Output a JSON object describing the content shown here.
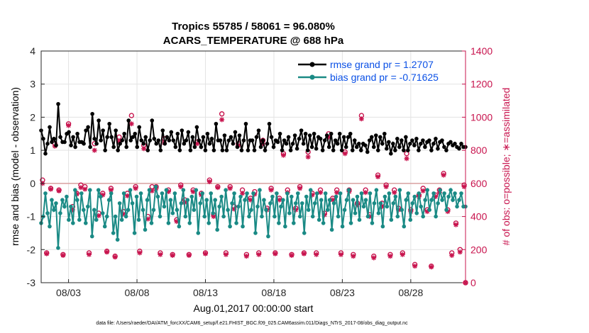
{
  "chart_data": {
    "type": "line",
    "title": "Tropics 55785 / 58061 = 96.080%",
    "subtitle": "ACARS_TEMPERATURE @ 688 hPa",
    "xlabel": "Aug.01,2017 00:00:00 start",
    "ylabel": "rmse and bias (model - observation)",
    "y2label": "# of obs: o=possible; ∗=assimilated",
    "footnote": "data file: /Users/raeder/DAI/ATM_forcXX/CAM6_setup/f.e21.FHIST_BGC.f09_025.CAM6assim.011/Diags_NTrS_2017-08/obs_diag_output.nc",
    "xlim": [
      1.0,
      32.0
    ],
    "ylim": [
      -3,
      4
    ],
    "y2lim": [
      0,
      1400
    ],
    "x_ticks": [
      3,
      8,
      13,
      18,
      23,
      28
    ],
    "x_tick_labels": [
      "08/03",
      "08/08",
      "08/13",
      "08/18",
      "08/23",
      "08/28"
    ],
    "y_ticks": [
      -3,
      -2,
      -1,
      0,
      1,
      2,
      3,
      4
    ],
    "y2_ticks": [
      0,
      200,
      400,
      600,
      800,
      1000,
      1200,
      1400
    ],
    "legend_position": "top-right",
    "series": [
      {
        "name": "rmse grand pr = 1.2707",
        "color": "#000000",
        "axis": "left",
        "values": [
          1.6,
          1.35,
          0.9,
          1.2,
          1.7,
          1.25,
          1.35,
          1.15,
          2.4,
          1.4,
          1.25,
          1.25,
          1.5,
          1.55,
          1.15,
          1.4,
          1.1,
          1.5,
          1.25,
          1.25,
          1.2,
          1.6,
          1.7,
          1.1,
          2.1,
          1.35,
          1.2,
          1.9,
          1.3,
          1.6,
          1.0,
          1.4,
          1.8,
          1.4,
          1.1,
          1.6,
          1.0,
          1.2,
          1.3,
          1.5,
          1.1,
          1.9,
          1.3,
          1.4,
          1.5,
          1.1,
          1.7,
          1.3,
          1.2,
          1.4,
          1.0,
          1.3,
          1.9,
          1.35,
          1.2,
          1.3,
          1.0,
          1.6,
          1.2,
          1.4,
          1.3,
          1.55,
          1.3,
          1.1,
          1.5,
          1.0,
          1.6,
          1.2,
          1.3,
          1.55,
          1.0,
          1.4,
          1.1,
          1.7,
          1.3,
          1.1,
          1.4,
          1.0,
          1.5,
          1.2,
          1.35,
          1.0,
          1.8,
          1.3,
          1.3,
          1.0,
          1.45,
          1.0,
          1.3,
          1.4,
          1.2,
          1.55,
          1.1,
          1.45,
          1.0,
          1.3,
          1.8,
          1.0,
          1.3,
          1.3,
          1.0,
          1.4,
          1.6,
          1.1,
          1.3,
          1.0,
          1.2,
          1.8,
          1.4,
          1.1,
          1.3,
          1.25,
          1.5,
          1.0,
          1.3,
          1.2,
          1.4,
          1.0,
          1.2,
          1.45,
          1.05,
          1.35,
          1.6,
          1.2,
          1.5,
          1.0,
          1.45,
          1.1,
          1.5,
          1.05,
          1.4,
          1.35,
          1.0,
          1.3,
          1.45,
          1.1,
          1.5,
          1.0,
          1.3,
          1.2,
          1.5,
          1.0,
          1.4,
          1.1,
          1.4,
          1.5,
          1.0,
          1.3,
          1.1,
          1.2,
          1.0,
          1.2,
          1.15,
          0.95,
          1.3,
          1.4,
          1.1,
          1.45,
          1.0,
          1.4,
          1.2,
          1.5,
          1.05,
          1.25,
          0.9,
          1.2,
          1.0,
          1.35,
          1.1,
          1.3,
          1.0,
          1.4,
          1.0,
          1.2,
          1.3,
          1.15,
          1.35,
          1.0,
          1.2,
          1.3,
          1.1,
          1.25,
          1.3,
          1.0,
          1.2,
          1.35,
          1.05,
          1.25,
          1.3,
          1.1,
          1.0,
          1.2,
          1.25,
          1.15,
          1.2,
          1.1,
          1.05,
          1.2,
          1.1,
          1.1
        ]
      },
      {
        "name": "bias grand pr = -0.71625",
        "color": "#1a8a85",
        "axis": "left",
        "values": [
          -1.2,
          -1.0,
          -0.3,
          -0.9,
          -1.3,
          -0.5,
          -0.8,
          -0.6,
          -1.95,
          -0.9,
          -0.5,
          -0.7,
          -0.4,
          -1.1,
          -0.7,
          -1.2,
          -0.2,
          -0.5,
          -1.1,
          -0.3,
          -0.8,
          -1.2,
          -0.7,
          -0.2,
          -1.6,
          -0.8,
          -1.1,
          -0.2,
          -0.4,
          -0.9,
          -1.3,
          -1.0,
          -0.5,
          -0.3,
          -1.5,
          -1.0,
          -1.7,
          -0.6,
          -1.1,
          -0.3,
          -1.0,
          -0.8,
          -0.2,
          -0.6,
          -1.5,
          -0.4,
          -1.1,
          -0.3,
          -0.8,
          -1.4,
          -0.5,
          -0.2,
          -1.2,
          -0.8,
          -0.1,
          -0.4,
          -1.0,
          -0.3,
          -0.7,
          -0.2,
          -1.2,
          -0.5,
          -0.9,
          -0.3,
          -0.8,
          -1.3,
          -0.6,
          -0.2,
          -1.0,
          -0.5,
          -1.2,
          -0.4,
          -0.8,
          -0.2,
          -1.5,
          -0.6,
          -0.3,
          -1.0,
          -0.5,
          -1.2,
          -0.3,
          -0.9,
          -0.5,
          -1.4,
          -0.7,
          -0.4,
          -1.0,
          -0.2,
          -0.8,
          -1.3,
          -0.6,
          -0.3,
          -1.2,
          -0.7,
          -0.4,
          -1.3,
          -0.5,
          -0.3,
          -1.0,
          -0.8,
          -0.3,
          -1.5,
          -0.7,
          -0.2,
          -1.0,
          -0.5,
          -0.8,
          -1.6,
          -0.6,
          -0.4,
          -1.0,
          -0.3,
          -1.2,
          -0.7,
          -0.5,
          -1.3,
          -0.3,
          -0.9,
          -0.4,
          -1.2,
          -0.6,
          -0.3,
          -1.0,
          -0.6,
          -1.5,
          -0.4,
          -0.8,
          -0.2,
          -1.0,
          -0.6,
          -0.3,
          -1.1,
          -0.5,
          -1.2,
          -0.3,
          -0.8,
          -0.5,
          -1.4,
          -0.6,
          -0.4,
          -1.0,
          -0.3,
          -1.3,
          -0.8,
          -0.5,
          -0.2,
          -1.2,
          -0.5,
          -0.9,
          -0.4,
          -1.1,
          -0.3,
          -0.7,
          -0.5,
          -1.0,
          -0.3,
          -1.2,
          -0.6,
          -0.2,
          -0.9,
          -0.6,
          -1.3,
          -0.4,
          -0.7,
          -0.3,
          -1.1,
          -0.6,
          -0.4,
          -1.0,
          -0.2,
          -0.8,
          -1.3,
          -0.5,
          -0.3,
          -1.1,
          -0.6,
          -0.4,
          -0.9,
          -0.3,
          -0.7,
          -1.0,
          -0.5,
          -0.2,
          -0.8,
          -0.5,
          -0.3,
          -1.0,
          -0.6,
          -0.2,
          -0.5,
          -0.3,
          -0.8,
          -0.4,
          -0.2,
          -0.5,
          -0.3,
          -0.7,
          -0.5,
          -0.3,
          -0.7,
          -0.7
        ]
      }
    ],
    "obs_counts": {
      "color": "#c8144e",
      "axis": "right",
      "possible_marker": "o",
      "assimilated_marker": "*",
      "points": [
        [
          1.1,
          620,
          600
        ],
        [
          1.4,
          180,
          175
        ],
        [
          1.7,
          570,
          565
        ],
        [
          2.0,
          840,
          825
        ],
        [
          2.3,
          560,
          555
        ],
        [
          2.6,
          170,
          165
        ],
        [
          3.0,
          960,
          950
        ],
        [
          3.3,
          460,
          440
        ],
        [
          3.6,
          540,
          535
        ],
        [
          3.9,
          590,
          575
        ],
        [
          4.2,
          580,
          565
        ],
        [
          4.5,
          180,
          170
        ],
        [
          4.9,
          840,
          800
        ],
        [
          5.2,
          420,
          405
        ],
        [
          5.5,
          540,
          530
        ],
        [
          5.8,
          190,
          185
        ],
        [
          6.1,
          570,
          560
        ],
        [
          6.4,
          160,
          155
        ],
        [
          6.7,
          880,
          855
        ],
        [
          7.0,
          430,
          415
        ],
        [
          7.3,
          540,
          525
        ],
        [
          7.6,
          1010,
          960
        ],
        [
          7.9,
          580,
          570
        ],
        [
          8.2,
          190,
          180
        ],
        [
          8.5,
          830,
          810
        ],
        [
          8.8,
          400,
          385
        ],
        [
          9.1,
          580,
          555
        ],
        [
          9.4,
          580,
          570
        ],
        [
          9.7,
          180,
          170
        ],
        [
          10.0,
          870,
          845
        ],
        [
          10.3,
          560,
          550
        ],
        [
          10.6,
          170,
          165
        ],
        [
          10.9,
          380,
          370
        ],
        [
          11.2,
          590,
          580
        ],
        [
          11.5,
          500,
          485
        ],
        [
          11.8,
          170,
          165
        ],
        [
          12.1,
          560,
          550
        ],
        [
          12.4,
          850,
          840
        ],
        [
          12.7,
          540,
          530
        ],
        [
          13.0,
          180,
          175
        ],
        [
          13.3,
          620,
          610
        ],
        [
          13.6,
          410,
          400
        ],
        [
          13.9,
          580,
          575
        ],
        [
          14.2,
          1020,
          985
        ],
        [
          14.5,
          180,
          170
        ],
        [
          14.8,
          580,
          570
        ],
        [
          15.1,
          460,
          445
        ],
        [
          15.4,
          840,
          830
        ],
        [
          15.7,
          560,
          540
        ],
        [
          16.0,
          170,
          160
        ],
        [
          16.3,
          510,
          500
        ],
        [
          16.6,
          550,
          535
        ],
        [
          16.9,
          180,
          170
        ],
        [
          17.2,
          860,
          840
        ],
        [
          17.5,
          450,
          440
        ],
        [
          17.8,
          570,
          560
        ],
        [
          18.1,
          180,
          175
        ],
        [
          18.4,
          510,
          500
        ],
        [
          18.7,
          780,
          770
        ],
        [
          19.0,
          560,
          545
        ],
        [
          19.3,
          170,
          165
        ],
        [
          19.6,
          450,
          440
        ],
        [
          19.9,
          580,
          570
        ],
        [
          20.2,
          180,
          175
        ],
        [
          20.5,
          790,
          760
        ],
        [
          20.8,
          540,
          530
        ],
        [
          21.1,
          180,
          170
        ],
        [
          21.4,
          560,
          545
        ],
        [
          21.7,
          420,
          410
        ],
        [
          22.0,
          900,
          880
        ],
        [
          22.3,
          510,
          500
        ],
        [
          22.6,
          560,
          545
        ],
        [
          22.9,
          180,
          170
        ],
        [
          23.2,
          790,
          780
        ],
        [
          23.5,
          560,
          550
        ],
        [
          23.8,
          170,
          160
        ],
        [
          24.1,
          480,
          470
        ],
        [
          24.4,
          1010,
          990
        ],
        [
          24.7,
          560,
          545
        ],
        [
          25.0,
          410,
          400
        ],
        [
          25.3,
          160,
          150
        ],
        [
          25.6,
          650,
          640
        ],
        [
          25.9,
          480,
          460
        ],
        [
          26.2,
          590,
          580
        ],
        [
          26.5,
          170,
          160
        ],
        [
          26.8,
          560,
          545
        ],
        [
          27.1,
          450,
          440
        ],
        [
          27.4,
          180,
          170
        ],
        [
          27.7,
          780,
          750
        ],
        [
          28.0,
          440,
          430
        ],
        [
          28.3,
          110,
          100
        ],
        [
          28.6,
          530,
          520
        ],
        [
          28.9,
          570,
          555
        ],
        [
          29.2,
          440,
          430
        ],
        [
          29.5,
          100,
          95
        ],
        [
          29.8,
          530,
          520
        ],
        [
          30.1,
          560,
          545
        ],
        [
          30.4,
          660,
          650
        ],
        [
          30.7,
          440,
          430
        ],
        [
          31.0,
          180,
          165
        ],
        [
          31.3,
          360,
          350
        ],
        [
          31.6,
          200,
          185
        ],
        [
          31.9,
          590,
          580
        ],
        [
          32.0,
          0,
          0
        ]
      ]
    }
  }
}
